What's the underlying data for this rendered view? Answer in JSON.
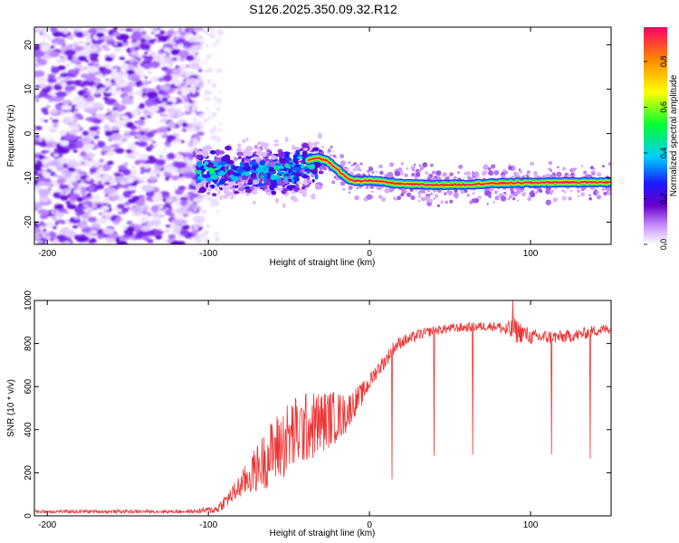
{
  "title": "S126.2025.350.09.32.R12",
  "chart_data": [
    {
      "type": "heatmap",
      "title": "S126.2025.350.09.32.R12",
      "xlabel": "Height of straight line (km)",
      "ylabel": "Frequency (Hz)",
      "xlim": [
        -208,
        150
      ],
      "ylim": [
        -25,
        24
      ],
      "xticks": [
        -200,
        -100,
        0,
        100
      ],
      "yticks": [
        -20,
        -10,
        0,
        10,
        20
      ],
      "colorbar": {
        "label": "Normalized spectral amplitude",
        "range": [
          0,
          0.95
        ],
        "ticks": [
          0.0,
          0.2,
          0.4,
          0.6,
          0.8
        ],
        "tick_labels": [
          "0.0",
          "0.2",
          "0.4",
          "0.6",
          "0.8"
        ]
      },
      "regions": [
        {
          "name": "diffuse noise",
          "x_range": [
            -208,
            -107
          ],
          "freq_range": [
            -25,
            24
          ],
          "amplitude": 0.1
        },
        {
          "name": "scattered signal",
          "x_range": [
            -107,
            -30
          ],
          "freq_range": [
            -14,
            -2
          ],
          "amplitude": 0.25
        },
        {
          "name": "narrowband tone",
          "x_range": [
            -30,
            150
          ],
          "freq_range": [
            -12,
            -5
          ],
          "amplitude": 0.9
        }
      ],
      "tone_frequency": [
        [
          -38,
          -6
        ],
        [
          -32,
          -5.5
        ],
        [
          -26,
          -6.2
        ],
        [
          -20,
          -8
        ],
        [
          -16,
          -9.5
        ],
        [
          -12,
          -10.5
        ],
        [
          -5,
          -10.8
        ],
        [
          0,
          -10.5
        ],
        [
          10,
          -11
        ],
        [
          20,
          -11.4
        ],
        [
          40,
          -11.6
        ],
        [
          60,
          -11.5
        ],
        [
          80,
          -11.2
        ],
        [
          100,
          -11.1
        ],
        [
          120,
          -11
        ],
        [
          150,
          -11
        ]
      ]
    },
    {
      "type": "line",
      "xlabel": "Height of straight line (km)",
      "ylabel": "SNR (10 * v/v)",
      "xlim": [
        -208,
        150
      ],
      "ylim": [
        0,
        1000
      ],
      "xticks": [
        -200,
        -100,
        0,
        100
      ],
      "yticks": [
        0,
        200,
        400,
        600,
        800,
        1000
      ],
      "series": [
        {
          "name": "SNR",
          "color": "#ee3333",
          "envelope": [
            [
              -208,
              20
            ],
            [
              -110,
              20
            ],
            [
              -95,
              30
            ],
            [
              -85,
              100
            ],
            [
              -75,
              180
            ],
            [
              -65,
              260
            ],
            [
              -55,
              330
            ],
            [
              -45,
              390
            ],
            [
              -35,
              420
            ],
            [
              -25,
              450
            ],
            [
              -15,
              470
            ],
            [
              -10,
              520
            ],
            [
              -5,
              560
            ],
            [
              0,
              620
            ],
            [
              5,
              680
            ],
            [
              10,
              720
            ],
            [
              15,
              780
            ],
            [
              20,
              810
            ],
            [
              25,
              820
            ],
            [
              30,
              840
            ],
            [
              40,
              860
            ],
            [
              50,
              870
            ],
            [
              60,
              875
            ],
            [
              70,
              880
            ],
            [
              80,
              880
            ],
            [
              85,
              860
            ],
            [
              90,
              860
            ],
            [
              95,
              850
            ],
            [
              100,
              830
            ],
            [
              110,
              830
            ],
            [
              120,
              830
            ],
            [
              130,
              840
            ],
            [
              140,
              860
            ],
            [
              150,
              870
            ]
          ],
          "spread": [
            [
              -208,
              8
            ],
            [
              -110,
              8
            ],
            [
              -100,
              15
            ],
            [
              -90,
              30
            ],
            [
              -80,
              60
            ],
            [
              -70,
              110
            ],
            [
              -60,
              160
            ],
            [
              -50,
              180
            ],
            [
              -40,
              170
            ],
            [
              -30,
              150
            ],
            [
              -20,
              120
            ],
            [
              -10,
              70
            ],
            [
              0,
              40
            ],
            [
              10,
              35
            ],
            [
              20,
              30
            ],
            [
              40,
              22
            ],
            [
              80,
              22
            ],
            [
              90,
              60
            ],
            [
              100,
              35
            ],
            [
              150,
              25
            ]
          ],
          "dips": [
            [
              14,
              170
            ],
            [
              40,
              280
            ],
            [
              64,
              285
            ],
            [
              89,
              225
            ],
            [
              113,
              285
            ],
            [
              137,
              265
            ]
          ],
          "peaks": [
            [
              89,
              1000
            ]
          ]
        }
      ]
    }
  ]
}
